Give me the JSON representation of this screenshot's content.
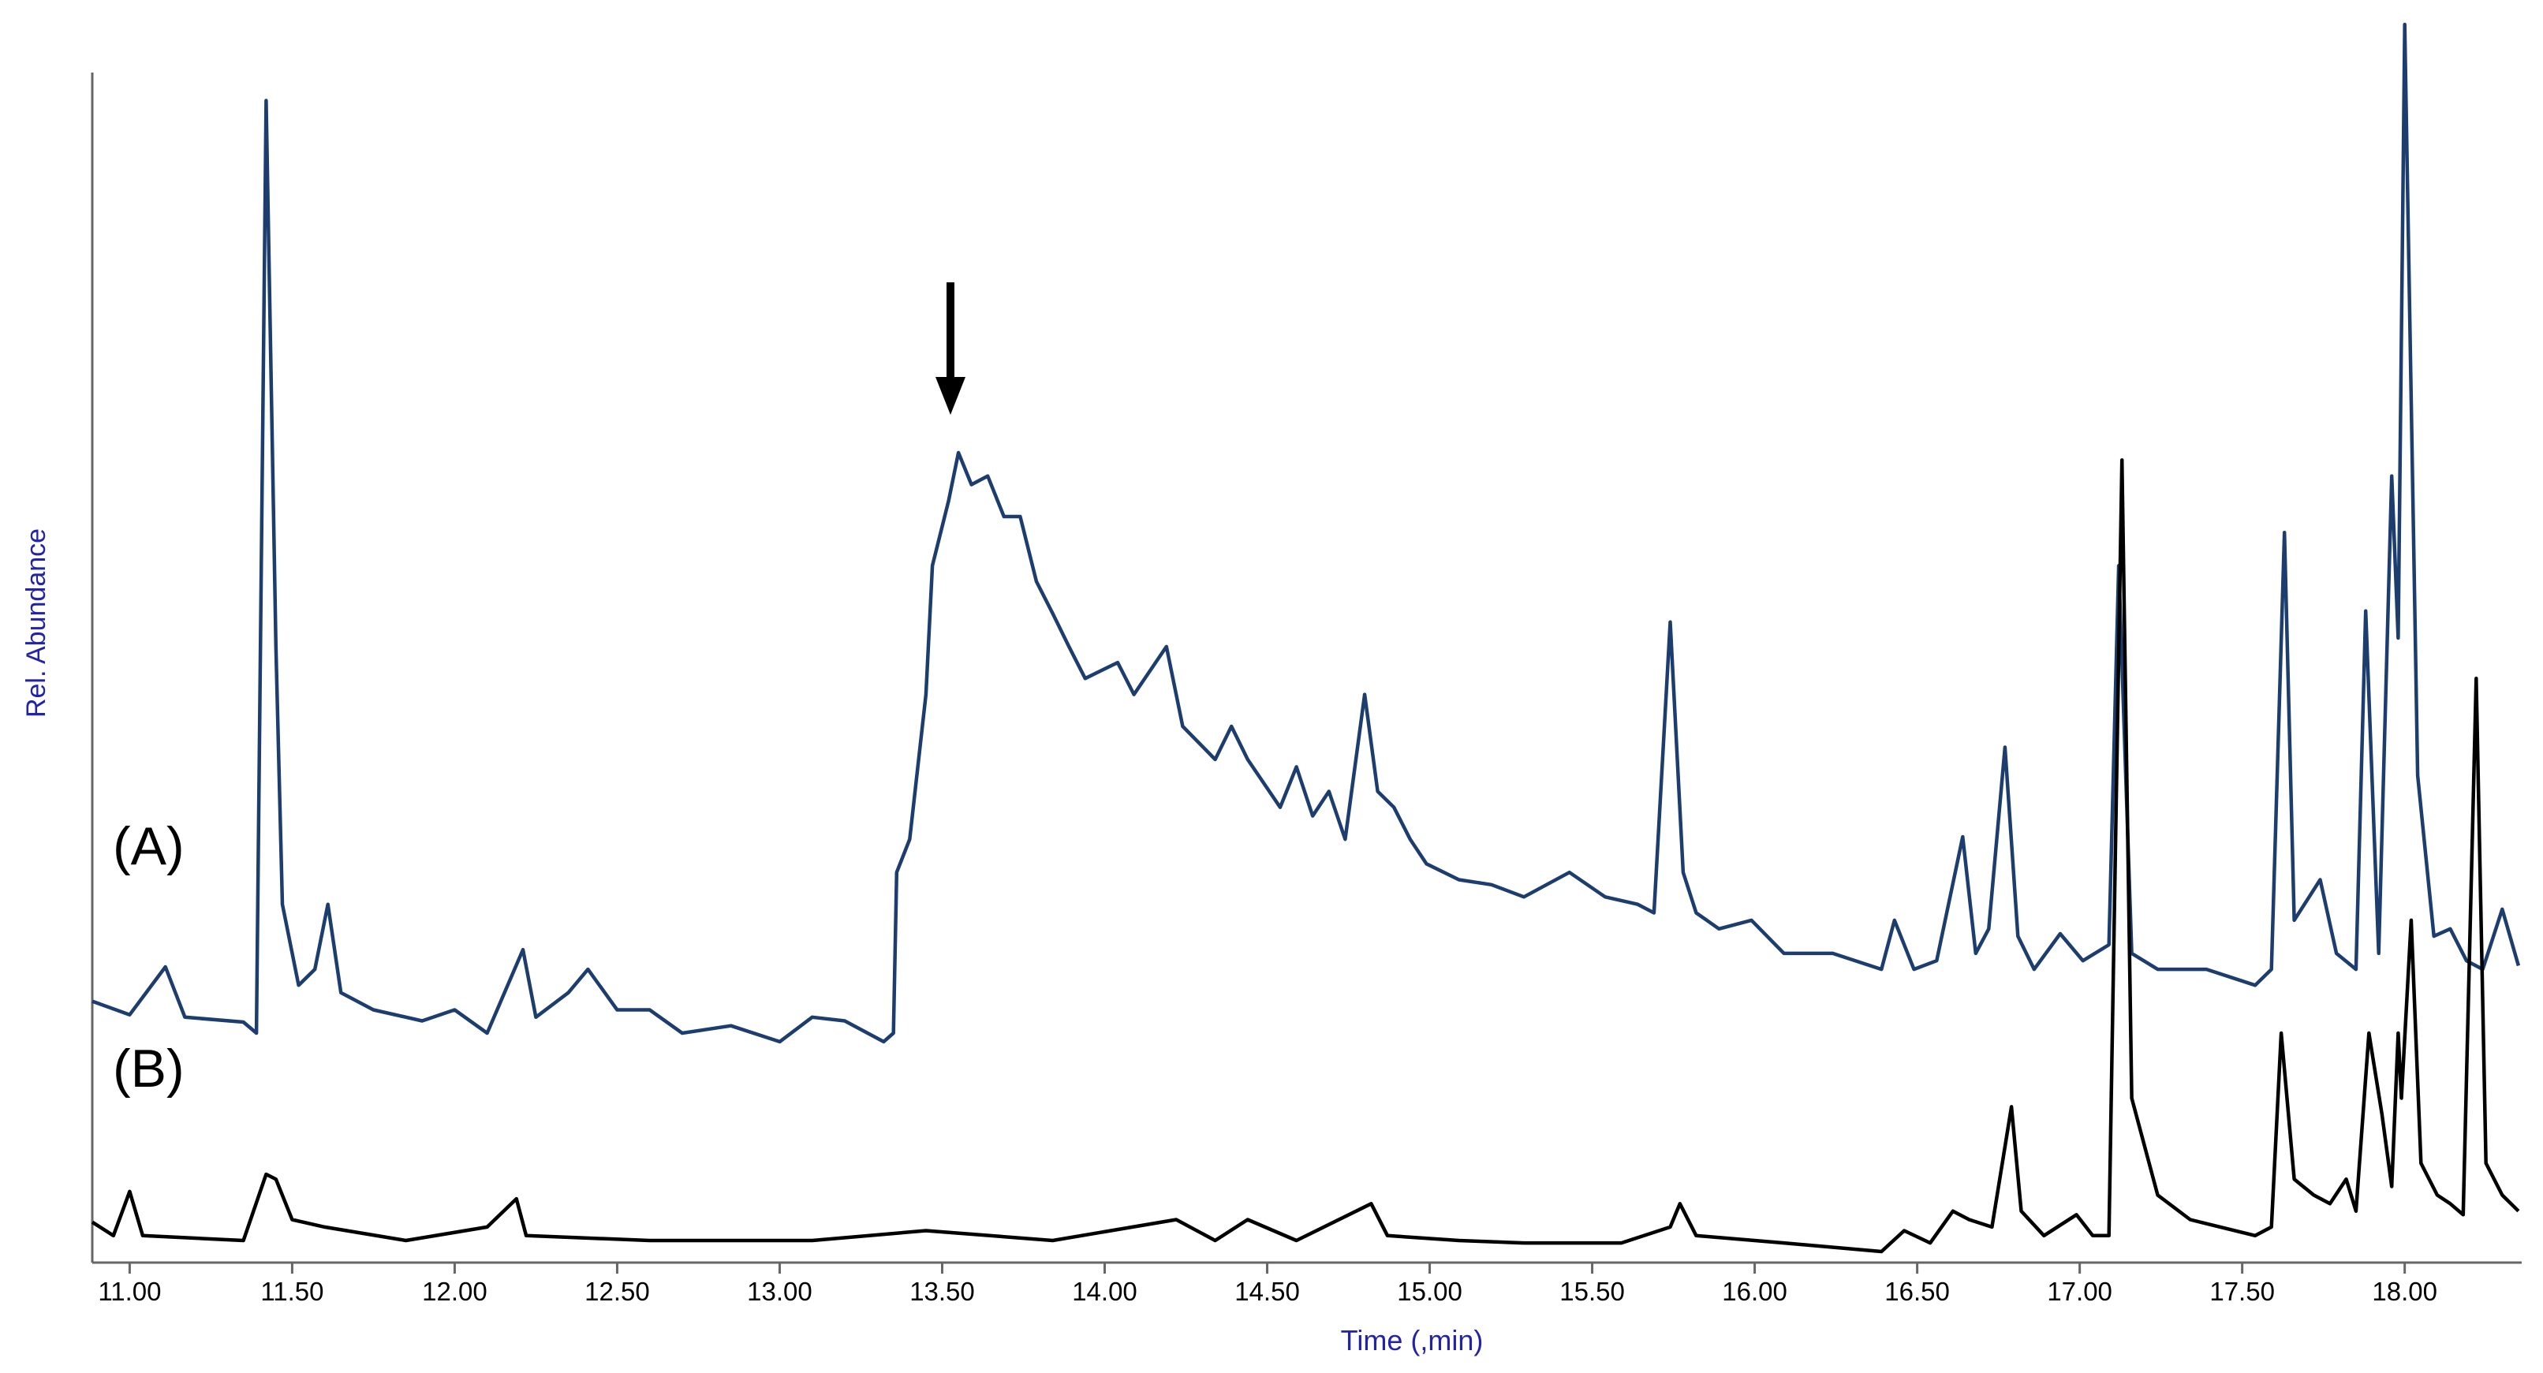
{
  "chart_data": {
    "type": "line",
    "x_label": "Time (,min)",
    "y_label": "Rel. Abundance",
    "xlim": [
      10.885,
      18.36
    ],
    "ylim": [
      0,
      100
    ],
    "xticks": [
      {
        "value": 11,
        "label": "11.00"
      },
      {
        "value": 11.5,
        "label": "11.50"
      },
      {
        "value": 12,
        "label": "12.00"
      },
      {
        "value": 12.5,
        "label": "12.50"
      },
      {
        "value": 13,
        "label": "13.00"
      },
      {
        "value": 13.5,
        "label": "13.50"
      },
      {
        "value": 14,
        "label": "14.00"
      },
      {
        "value": 14.5,
        "label": "14.50"
      },
      {
        "value": 15,
        "label": "15.00"
      },
      {
        "value": 15.5,
        "label": "15.50"
      },
      {
        "value": 16,
        "label": "16.00"
      },
      {
        "value": 16.5,
        "label": "16.50"
      },
      {
        "value": 17,
        "label": "17.00"
      },
      {
        "value": 17.5,
        "label": "17.50"
      },
      {
        "value": 18,
        "label": "18.00"
      }
    ],
    "series": [
      {
        "name": "(A)",
        "color": "#1c3d6e",
        "x": [
          10.885,
          11.0,
          11.11,
          11.17,
          11.35,
          11.39,
          11.42,
          11.45,
          11.47,
          11.52,
          11.57,
          11.61,
          11.65,
          11.75,
          11.9,
          12.0,
          12.1,
          12.21,
          12.25,
          12.35,
          12.41,
          12.5,
          12.6,
          12.7,
          12.85,
          13.0,
          13.1,
          13.2,
          13.32,
          13.35,
          13.36,
          13.4,
          13.45,
          13.47,
          13.52,
          13.55,
          13.59,
          13.64,
          13.69,
          13.74,
          13.79,
          13.84,
          13.89,
          13.94,
          14.04,
          14.09,
          14.19,
          14.24,
          14.34,
          14.39,
          14.44,
          14.54,
          14.59,
          14.64,
          14.69,
          14.74,
          14.8,
          14.84,
          14.89,
          14.94,
          14.99,
          15.09,
          15.19,
          15.29,
          15.43,
          15.54,
          15.64,
          15.69,
          15.74,
          15.78,
          15.82,
          15.89,
          15.99,
          16.09,
          16.24,
          16.39,
          16.43,
          16.49,
          16.56,
          16.64,
          16.68,
          16.72,
          16.77,
          16.81,
          16.86,
          16.94,
          17.01,
          17.09,
          17.12,
          17.16,
          17.24,
          17.39,
          17.54,
          17.59,
          17.63,
          17.66,
          17.74,
          17.79,
          17.85,
          17.88,
          17.92,
          17.96,
          17.98,
          18.0,
          18.04,
          18.09,
          18.14,
          18.19,
          18.24,
          18.3,
          18.35
        ],
        "values": [
          20.4,
          19.3,
          23.2,
          19.1,
          18.7,
          17.8,
          93.8,
          49.3,
          28.3,
          21.7,
          23.0,
          28.3,
          21.1,
          19.7,
          18.8,
          19.7,
          17.8,
          24.6,
          19.1,
          21.1,
          23.0,
          19.7,
          19.7,
          17.8,
          18.4,
          17.1,
          19.1,
          18.8,
          17.1,
          17.8,
          30.9,
          33.6,
          45.4,
          55.9,
          61.2,
          65.1,
          62.5,
          63.2,
          59.9,
          59.9,
          54.6,
          52.0,
          49.3,
          46.7,
          48.0,
          45.4,
          49.3,
          42.8,
          40.1,
          42.8,
          40.1,
          36.2,
          39.5,
          35.5,
          37.5,
          33.6,
          45.4,
          37.5,
          36.2,
          33.6,
          31.6,
          30.3,
          29.9,
          28.9,
          30.9,
          28.9,
          28.3,
          27.6,
          51.3,
          30.9,
          27.6,
          26.3,
          27.0,
          24.3,
          24.3,
          23.0,
          27.0,
          23.0,
          23.7,
          33.8,
          24.3,
          26.3,
          41.1,
          25.7,
          23.0,
          25.9,
          23.7,
          25.0,
          55.9,
          24.3,
          23.0,
          23.0,
          21.7,
          23.0,
          58.6,
          27.0,
          30.3,
          24.3,
          23.0,
          52.2,
          24.3,
          63.2,
          50.0,
          100,
          38.8,
          25.7,
          26.3,
          23.7,
          23.0,
          27.9,
          23.3
        ]
      },
      {
        "name": "(B)",
        "color": "#000000",
        "x": [
          10.885,
          10.95,
          11.0,
          11.04,
          11.35,
          11.42,
          11.45,
          11.5,
          11.6,
          11.85,
          12.1,
          12.19,
          12.22,
          12.6,
          13.1,
          13.45,
          13.84,
          14.22,
          14.34,
          14.44,
          14.59,
          14.82,
          14.87,
          15.09,
          15.29,
          15.59,
          15.74,
          15.77,
          15.82,
          16.09,
          16.39,
          16.46,
          16.54,
          16.61,
          16.66,
          16.73,
          16.79,
          16.82,
          16.89,
          16.99,
          17.04,
          17.09,
          17.13,
          17.16,
          17.24,
          17.34,
          17.54,
          17.59,
          17.62,
          17.66,
          17.72,
          17.77,
          17.82,
          17.85,
          17.89,
          17.93,
          17.96,
          17.98,
          17.99,
          18.02,
          18.05,
          18.1,
          18.14,
          18.18,
          18.22,
          18.25,
          18.3,
          18.35
        ],
        "values": [
          2.4,
          1.3,
          4.9,
          1.3,
          0.9,
          6.3,
          5.9,
          2.6,
          2.0,
          0.9,
          2.0,
          4.3,
          1.3,
          0.9,
          0.9,
          1.7,
          0.9,
          2.6,
          0.9,
          2.6,
          0.9,
          3.9,
          1.3,
          0.9,
          0.7,
          0.7,
          2.0,
          3.9,
          1.3,
          0.7,
          0,
          1.7,
          0.7,
          3.3,
          2.6,
          2.0,
          11.8,
          3.3,
          1.3,
          3.0,
          1.3,
          1.3,
          64.5,
          12.5,
          4.6,
          2.6,
          1.3,
          2.0,
          17.8,
          5.9,
          4.6,
          3.9,
          5.9,
          3.3,
          17.8,
          11.2,
          5.3,
          17.8,
          12.5,
          27.0,
          7.2,
          4.6,
          3.9,
          3.0,
          46.7,
          7.2,
          4.6,
          3.3
        ]
      }
    ]
  }
}
